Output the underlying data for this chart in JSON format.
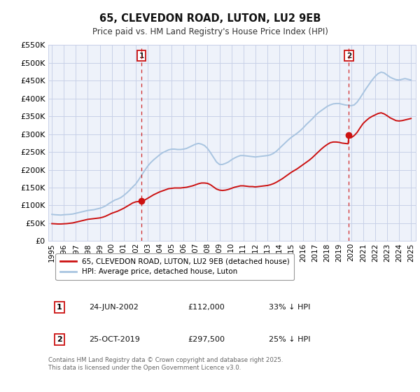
{
  "title": "65, CLEVEDON ROAD, LUTON, LU2 9EB",
  "subtitle": "Price paid vs. HM Land Registry's House Price Index (HPI)",
  "background_color": "#ffffff",
  "plot_bg_color": "#eef2fa",
  "grid_color": "#c8d0e8",
  "hpi_color": "#a8c4e0",
  "price_color": "#cc1111",
  "ylim": [
    0,
    550000
  ],
  "yticks": [
    0,
    50000,
    100000,
    150000,
    200000,
    250000,
    300000,
    350000,
    400000,
    450000,
    500000,
    550000
  ],
  "xlim_start": 1994.7,
  "xlim_end": 2025.4,
  "marker1_x": 2002.48,
  "marker1_y": 112000,
  "marker2_x": 2019.81,
  "marker2_y": 297500,
  "legend_line1": "65, CLEVEDON ROAD, LUTON, LU2 9EB (detached house)",
  "legend_line2": "HPI: Average price, detached house, Luton",
  "table_row1": [
    "1",
    "24-JUN-2002",
    "£112,000",
    "33% ↓ HPI"
  ],
  "table_row2": [
    "2",
    "25-OCT-2019",
    "£297,500",
    "25% ↓ HPI"
  ],
  "footer": "Contains HM Land Registry data © Crown copyright and database right 2025.\nThis data is licensed under the Open Government Licence v3.0.",
  "hpi_data": [
    [
      1995.0,
      75000
    ],
    [
      1995.25,
      74000
    ],
    [
      1995.5,
      73500
    ],
    [
      1995.75,
      73000
    ],
    [
      1996.0,
      74000
    ],
    [
      1996.25,
      74500
    ],
    [
      1996.5,
      75000
    ],
    [
      1996.75,
      76000
    ],
    [
      1997.0,
      78000
    ],
    [
      1997.25,
      80000
    ],
    [
      1997.5,
      82000
    ],
    [
      1997.75,
      84000
    ],
    [
      1998.0,
      86000
    ],
    [
      1998.25,
      87000
    ],
    [
      1998.5,
      88000
    ],
    [
      1998.75,
      90000
    ],
    [
      1999.0,
      92000
    ],
    [
      1999.25,
      95000
    ],
    [
      1999.5,
      99000
    ],
    [
      1999.75,
      105000
    ],
    [
      2000.0,
      110000
    ],
    [
      2000.25,
      115000
    ],
    [
      2000.5,
      118000
    ],
    [
      2000.75,
      122000
    ],
    [
      2001.0,
      128000
    ],
    [
      2001.25,
      135000
    ],
    [
      2001.5,
      143000
    ],
    [
      2001.75,
      152000
    ],
    [
      2002.0,
      160000
    ],
    [
      2002.25,
      172000
    ],
    [
      2002.5,
      185000
    ],
    [
      2002.75,
      198000
    ],
    [
      2003.0,
      210000
    ],
    [
      2003.25,
      220000
    ],
    [
      2003.5,
      228000
    ],
    [
      2003.75,
      235000
    ],
    [
      2004.0,
      242000
    ],
    [
      2004.25,
      248000
    ],
    [
      2004.5,
      252000
    ],
    [
      2004.75,
      256000
    ],
    [
      2005.0,
      258000
    ],
    [
      2005.25,
      258000
    ],
    [
      2005.5,
      257000
    ],
    [
      2005.75,
      257000
    ],
    [
      2006.0,
      258000
    ],
    [
      2006.25,
      260000
    ],
    [
      2006.5,
      264000
    ],
    [
      2006.75,
      268000
    ],
    [
      2007.0,
      272000
    ],
    [
      2007.25,
      274000
    ],
    [
      2007.5,
      272000
    ],
    [
      2007.75,
      268000
    ],
    [
      2008.0,
      260000
    ],
    [
      2008.25,
      248000
    ],
    [
      2008.5,
      235000
    ],
    [
      2008.75,
      222000
    ],
    [
      2009.0,
      215000
    ],
    [
      2009.25,
      215000
    ],
    [
      2009.5,
      218000
    ],
    [
      2009.75,
      222000
    ],
    [
      2010.0,
      228000
    ],
    [
      2010.25,
      233000
    ],
    [
      2010.5,
      237000
    ],
    [
      2010.75,
      240000
    ],
    [
      2011.0,
      240000
    ],
    [
      2011.25,
      239000
    ],
    [
      2011.5,
      238000
    ],
    [
      2011.75,
      237000
    ],
    [
      2012.0,
      236000
    ],
    [
      2012.25,
      237000
    ],
    [
      2012.5,
      238000
    ],
    [
      2012.75,
      239000
    ],
    [
      2013.0,
      240000
    ],
    [
      2013.25,
      242000
    ],
    [
      2013.5,
      246000
    ],
    [
      2013.75,
      252000
    ],
    [
      2014.0,
      260000
    ],
    [
      2014.25,
      268000
    ],
    [
      2014.5,
      276000
    ],
    [
      2014.75,
      284000
    ],
    [
      2015.0,
      291000
    ],
    [
      2015.25,
      297000
    ],
    [
      2015.5,
      303000
    ],
    [
      2015.75,
      310000
    ],
    [
      2016.0,
      318000
    ],
    [
      2016.25,
      327000
    ],
    [
      2016.5,
      335000
    ],
    [
      2016.75,
      343000
    ],
    [
      2017.0,
      352000
    ],
    [
      2017.25,
      360000
    ],
    [
      2017.5,
      366000
    ],
    [
      2017.75,
      372000
    ],
    [
      2018.0,
      378000
    ],
    [
      2018.25,
      382000
    ],
    [
      2018.5,
      385000
    ],
    [
      2018.75,
      386000
    ],
    [
      2019.0,
      386000
    ],
    [
      2019.25,
      384000
    ],
    [
      2019.5,
      382000
    ],
    [
      2019.75,
      381000
    ],
    [
      2020.0,
      380000
    ],
    [
      2020.25,
      382000
    ],
    [
      2020.5,
      390000
    ],
    [
      2020.75,
      402000
    ],
    [
      2021.0,
      415000
    ],
    [
      2021.25,
      428000
    ],
    [
      2021.5,
      440000
    ],
    [
      2021.75,
      452000
    ],
    [
      2022.0,
      462000
    ],
    [
      2022.25,
      470000
    ],
    [
      2022.5,
      474000
    ],
    [
      2022.75,
      472000
    ],
    [
      2023.0,
      466000
    ],
    [
      2023.25,
      460000
    ],
    [
      2023.5,
      456000
    ],
    [
      2023.75,
      453000
    ],
    [
      2024.0,
      452000
    ],
    [
      2024.25,
      454000
    ],
    [
      2024.5,
      456000
    ],
    [
      2024.75,
      454000
    ],
    [
      2025.0,
      452000
    ]
  ],
  "price_data": [
    [
      1995.0,
      49000
    ],
    [
      1995.25,
      48500
    ],
    [
      1995.5,
      48000
    ],
    [
      1995.75,
      48000
    ],
    [
      1996.0,
      48500
    ],
    [
      1996.25,
      49000
    ],
    [
      1996.5,
      50000
    ],
    [
      1996.75,
      51000
    ],
    [
      1997.0,
      53000
    ],
    [
      1997.25,
      55000
    ],
    [
      1997.5,
      57000
    ],
    [
      1997.75,
      59000
    ],
    [
      1998.0,
      61000
    ],
    [
      1998.25,
      62000
    ],
    [
      1998.5,
      63000
    ],
    [
      1998.75,
      64000
    ],
    [
      1999.0,
      65000
    ],
    [
      1999.25,
      67000
    ],
    [
      1999.5,
      70000
    ],
    [
      1999.75,
      74000
    ],
    [
      2000.0,
      78000
    ],
    [
      2000.25,
      81000
    ],
    [
      2000.5,
      84000
    ],
    [
      2000.75,
      88000
    ],
    [
      2001.0,
      92000
    ],
    [
      2001.25,
      97000
    ],
    [
      2001.5,
      102000
    ],
    [
      2001.75,
      107000
    ],
    [
      2002.0,
      110000
    ],
    [
      2002.25,
      111000
    ],
    [
      2002.48,
      112000
    ],
    [
      2002.75,
      115000
    ],
    [
      2003.0,
      120000
    ],
    [
      2003.25,
      125000
    ],
    [
      2003.5,
      130000
    ],
    [
      2003.75,
      134000
    ],
    [
      2004.0,
      138000
    ],
    [
      2004.25,
      141000
    ],
    [
      2004.5,
      144000
    ],
    [
      2004.75,
      147000
    ],
    [
      2005.0,
      148000
    ],
    [
      2005.25,
      149000
    ],
    [
      2005.5,
      149000
    ],
    [
      2005.75,
      149000
    ],
    [
      2006.0,
      150000
    ],
    [
      2006.25,
      151000
    ],
    [
      2006.5,
      153000
    ],
    [
      2006.75,
      155000
    ],
    [
      2007.0,
      158000
    ],
    [
      2007.25,
      161000
    ],
    [
      2007.5,
      163000
    ],
    [
      2007.75,
      163000
    ],
    [
      2008.0,
      162000
    ],
    [
      2008.25,
      158000
    ],
    [
      2008.5,
      152000
    ],
    [
      2008.75,
      146000
    ],
    [
      2009.0,
      143000
    ],
    [
      2009.25,
      142000
    ],
    [
      2009.5,
      143000
    ],
    [
      2009.75,
      145000
    ],
    [
      2010.0,
      148000
    ],
    [
      2010.25,
      151000
    ],
    [
      2010.5,
      153000
    ],
    [
      2010.75,
      155000
    ],
    [
      2011.0,
      155000
    ],
    [
      2011.25,
      154000
    ],
    [
      2011.5,
      153000
    ],
    [
      2011.75,
      153000
    ],
    [
      2012.0,
      152000
    ],
    [
      2012.25,
      153000
    ],
    [
      2012.5,
      154000
    ],
    [
      2012.75,
      155000
    ],
    [
      2013.0,
      156000
    ],
    [
      2013.25,
      158000
    ],
    [
      2013.5,
      161000
    ],
    [
      2013.75,
      165000
    ],
    [
      2014.0,
      170000
    ],
    [
      2014.25,
      175000
    ],
    [
      2014.5,
      181000
    ],
    [
      2014.75,
      187000
    ],
    [
      2015.0,
      193000
    ],
    [
      2015.25,
      198000
    ],
    [
      2015.5,
      203000
    ],
    [
      2015.75,
      209000
    ],
    [
      2016.0,
      215000
    ],
    [
      2016.25,
      221000
    ],
    [
      2016.5,
      227000
    ],
    [
      2016.75,
      234000
    ],
    [
      2017.0,
      242000
    ],
    [
      2017.25,
      250000
    ],
    [
      2017.5,
      258000
    ],
    [
      2017.75,
      265000
    ],
    [
      2018.0,
      271000
    ],
    [
      2018.25,
      276000
    ],
    [
      2018.5,
      278000
    ],
    [
      2018.75,
      278000
    ],
    [
      2019.0,
      277000
    ],
    [
      2019.25,
      275000
    ],
    [
      2019.5,
      274000
    ],
    [
      2019.75,
      273000
    ],
    [
      2019.81,
      297500
    ],
    [
      2020.0,
      290000
    ],
    [
      2020.25,
      296000
    ],
    [
      2020.5,
      305000
    ],
    [
      2020.75,
      318000
    ],
    [
      2021.0,
      330000
    ],
    [
      2021.25,
      338000
    ],
    [
      2021.5,
      345000
    ],
    [
      2021.75,
      350000
    ],
    [
      2022.0,
      354000
    ],
    [
      2022.25,
      358000
    ],
    [
      2022.5,
      360000
    ],
    [
      2022.75,
      357000
    ],
    [
      2023.0,
      352000
    ],
    [
      2023.25,
      346000
    ],
    [
      2023.5,
      342000
    ],
    [
      2023.75,
      338000
    ],
    [
      2024.0,
      337000
    ],
    [
      2024.25,
      338000
    ],
    [
      2024.5,
      340000
    ],
    [
      2024.75,
      342000
    ],
    [
      2025.0,
      344000
    ]
  ]
}
